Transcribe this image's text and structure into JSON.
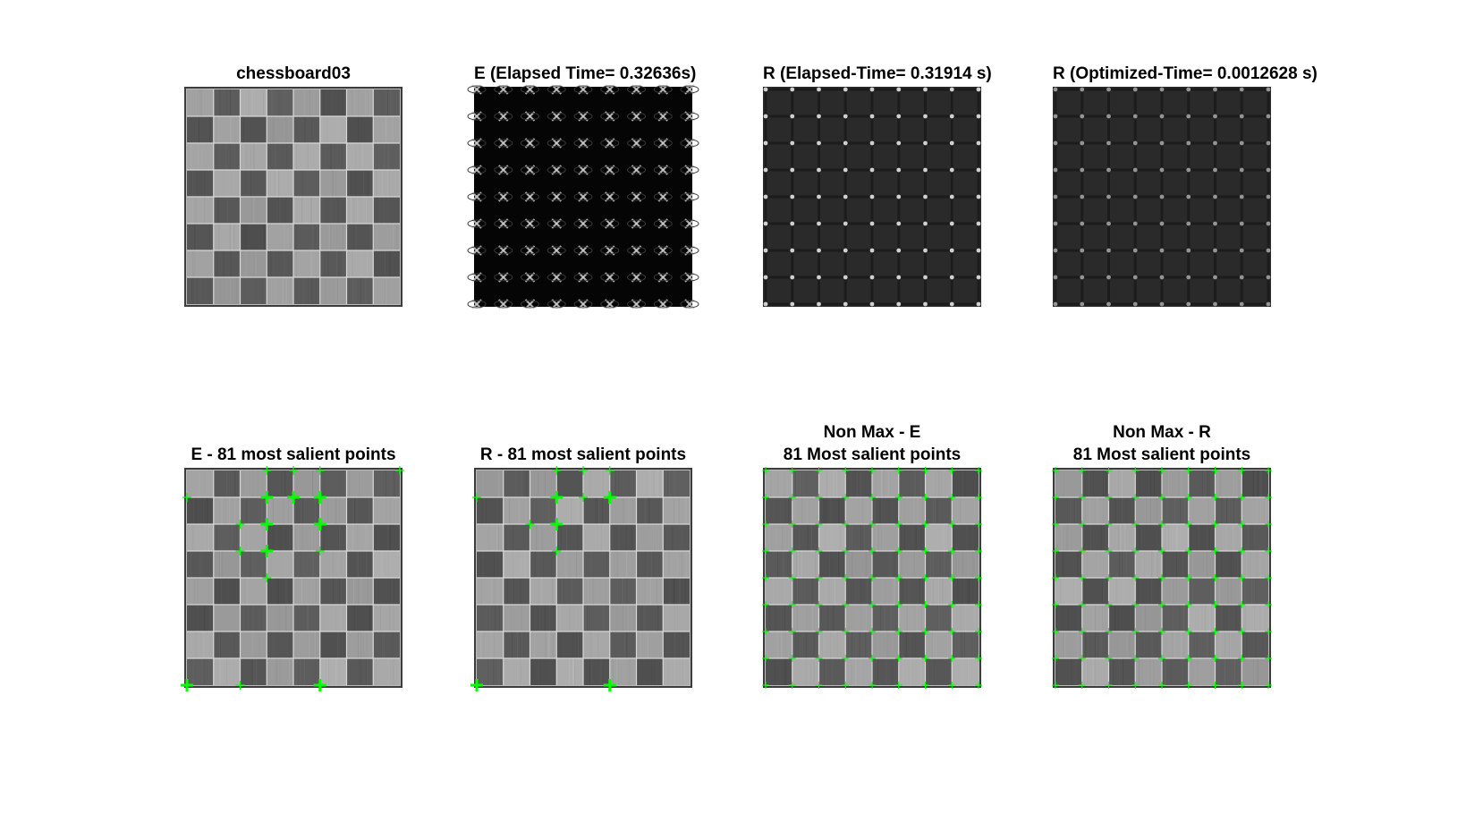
{
  "figure": {
    "panels": [
      {
        "id": "p1",
        "kind": "chessboard",
        "title_lines": [
          "chessboard03"
        ],
        "markers": "none"
      },
      {
        "id": "p2",
        "kind": "response-e",
        "title_lines": [
          "E (Elapsed Time= 0.32636s)"
        ],
        "markers": "none"
      },
      {
        "id": "p3",
        "kind": "response-r",
        "title_lines": [
          "R (Elapsed-Time= 0.31914 s)"
        ],
        "markers": "none"
      },
      {
        "id": "p4",
        "kind": "response-r2",
        "title_lines": [
          "R (Optimized-Time= 0.0012628 s)"
        ],
        "markers": "none"
      },
      {
        "id": "p5",
        "kind": "chessboard",
        "title_lines": [
          "E - 81 most salient points"
        ],
        "markers": "salient-e"
      },
      {
        "id": "p6",
        "kind": "chessboard",
        "title_lines": [
          "R - 81 most salient points"
        ],
        "markers": "salient-r"
      },
      {
        "id": "p7",
        "kind": "chessboard",
        "title_lines": [
          "Non Max - E",
          "81 Most salient points"
        ],
        "markers": "grid"
      },
      {
        "id": "p8",
        "kind": "chessboard",
        "title_lines": [
          "Non Max - R",
          "81 Most salient points"
        ],
        "markers": "grid"
      }
    ],
    "marker_color": "#00ff00"
  }
}
